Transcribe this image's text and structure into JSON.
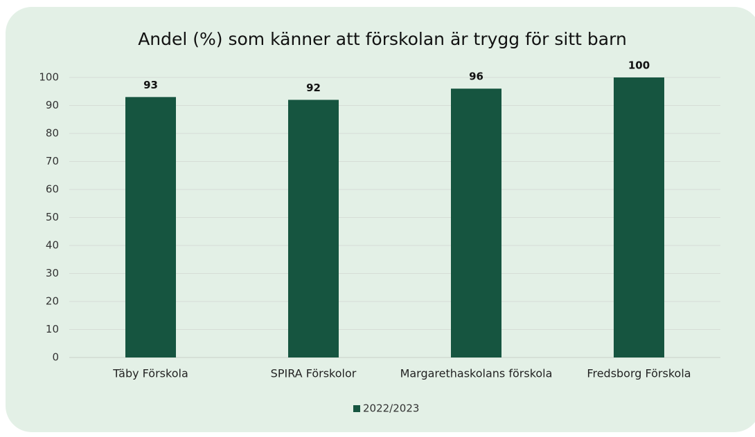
{
  "chart_data": {
    "type": "bar",
    "title": "Andel (%) som känner att förskolan är trygg för sitt barn",
    "categories": [
      "Täby Förskola",
      "SPIRA Förskolor",
      "Margarethaskolans förskola",
      "Fredsborg Förskola"
    ],
    "series": [
      {
        "name": "2022/2023",
        "color": "#165540",
        "values": [
          93,
          92,
          96,
          100
        ]
      }
    ],
    "ylim": [
      0,
      100
    ],
    "yticks": [
      0,
      10,
      20,
      30,
      40,
      50,
      60,
      70,
      80,
      90,
      100
    ],
    "grid": true,
    "legend": "bottom"
  }
}
